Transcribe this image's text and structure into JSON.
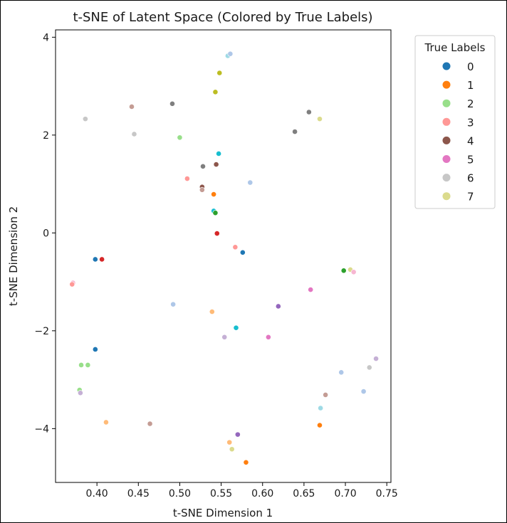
{
  "chart_data": {
    "type": "scatter",
    "title": "t-SNE of Latent Space (Colored by True Labels)",
    "xlabel": "t-SNE Dimension 1",
    "ylabel": "t-SNE Dimension 2",
    "xlim": [
      0.35,
      0.755
    ],
    "ylim": [
      -5.1,
      4.15
    ],
    "xticks": [
      0.4,
      0.45,
      0.5,
      0.55,
      0.6,
      0.65,
      0.7,
      0.75
    ],
    "xtick_labels": [
      "0.40",
      "0.45",
      "0.50",
      "0.55",
      "0.60",
      "0.65",
      "0.70",
      "0.75"
    ],
    "yticks": [
      4,
      2,
      0,
      -2,
      -4
    ],
    "ytick_labels": [
      "4",
      "2",
      "0",
      "−2",
      "−4"
    ],
    "grid": false,
    "legend": {
      "title": "True Labels",
      "placement": "outside-upper-right",
      "entries": [
        {
          "label": "0",
          "color": "#1f77b4"
        },
        {
          "label": "1",
          "color": "#ff7f0e"
        },
        {
          "label": "2",
          "color": "#98df8a"
        },
        {
          "label": "3",
          "color": "#ff9896"
        },
        {
          "label": "4",
          "color": "#8c564b"
        },
        {
          "label": "5",
          "color": "#e377c2"
        },
        {
          "label": "6",
          "color": "#c7c7c7"
        },
        {
          "label": "7",
          "color": "#dbdb8d"
        }
      ]
    },
    "points": [
      {
        "x": 0.558,
        "y": 3.62,
        "color": "#9edae5"
      },
      {
        "x": 0.561,
        "y": 3.66,
        "color": "#aec7e8"
      },
      {
        "x": 0.548,
        "y": 3.27,
        "color": "#bcbd22"
      },
      {
        "x": 0.543,
        "y": 2.88,
        "color": "#bcbd22"
      },
      {
        "x": 0.442,
        "y": 2.58,
        "color": "#c49c94"
      },
      {
        "x": 0.491,
        "y": 2.64,
        "color": "#7f7f7f"
      },
      {
        "x": 0.386,
        "y": 2.33,
        "color": "#c7c7c7"
      },
      {
        "x": 0.445,
        "y": 2.02,
        "color": "#c7c7c7"
      },
      {
        "x": 0.5,
        "y": 1.95,
        "color": "#98df8a"
      },
      {
        "x": 0.656,
        "y": 2.47,
        "color": "#7f7f7f"
      },
      {
        "x": 0.669,
        "y": 2.33,
        "color": "#dbdb8d"
      },
      {
        "x": 0.639,
        "y": 2.07,
        "color": "#7f7f7f"
      },
      {
        "x": 0.547,
        "y": 1.62,
        "color": "#17becf"
      },
      {
        "x": 0.509,
        "y": 1.11,
        "color": "#ff9896"
      },
      {
        "x": 0.528,
        "y": 1.36,
        "color": "#7f7f7f"
      },
      {
        "x": 0.544,
        "y": 1.4,
        "color": "#8c564b"
      },
      {
        "x": 0.585,
        "y": 1.03,
        "color": "#aec7e8"
      },
      {
        "x": 0.527,
        "y": 0.94,
        "color": "#8c564b"
      },
      {
        "x": 0.527,
        "y": 0.88,
        "color": "#c49c94"
      },
      {
        "x": 0.541,
        "y": 0.79,
        "color": "#ff7f0e"
      },
      {
        "x": 0.541,
        "y": 0.45,
        "color": "#17becf"
      },
      {
        "x": 0.543,
        "y": 0.41,
        "color": "#2ca02c"
      },
      {
        "x": 0.545,
        "y": -0.01,
        "color": "#d62728"
      },
      {
        "x": 0.567,
        "y": -0.29,
        "color": "#ff9896"
      },
      {
        "x": 0.576,
        "y": -0.4,
        "color": "#1f77b4"
      },
      {
        "x": 0.398,
        "y": -0.54,
        "color": "#1f77b4"
      },
      {
        "x": 0.406,
        "y": -0.54,
        "color": "#d62728"
      },
      {
        "x": 0.371,
        "y": -1.02,
        "color": "#f7b6d2"
      },
      {
        "x": 0.37,
        "y": -1.05,
        "color": "#ff9896"
      },
      {
        "x": 0.698,
        "y": -0.77,
        "color": "#2ca02c"
      },
      {
        "x": 0.706,
        "y": -0.75,
        "color": "#dbdb8d"
      },
      {
        "x": 0.71,
        "y": -0.8,
        "color": "#f7b6d2"
      },
      {
        "x": 0.658,
        "y": -1.16,
        "color": "#e377c2"
      },
      {
        "x": 0.619,
        "y": -1.5,
        "color": "#9467bd"
      },
      {
        "x": 0.492,
        "y": -1.46,
        "color": "#aec7e8"
      },
      {
        "x": 0.539,
        "y": -1.61,
        "color": "#ffbb78"
      },
      {
        "x": 0.568,
        "y": -1.94,
        "color": "#17becf"
      },
      {
        "x": 0.554,
        "y": -2.13,
        "color": "#c5b0d5"
      },
      {
        "x": 0.607,
        "y": -2.13,
        "color": "#e377c2"
      },
      {
        "x": 0.398,
        "y": -2.38,
        "color": "#1f77b4"
      },
      {
        "x": 0.381,
        "y": -2.7,
        "color": "#98df8a"
      },
      {
        "x": 0.389,
        "y": -2.7,
        "color": "#98df8a"
      },
      {
        "x": 0.379,
        "y": -3.21,
        "color": "#98df8a"
      },
      {
        "x": 0.38,
        "y": -3.27,
        "color": "#c5b0d5"
      },
      {
        "x": 0.695,
        "y": -2.85,
        "color": "#aec7e8"
      },
      {
        "x": 0.729,
        "y": -2.75,
        "color": "#c7c7c7"
      },
      {
        "x": 0.737,
        "y": -2.57,
        "color": "#c5b0d5"
      },
      {
        "x": 0.722,
        "y": -3.24,
        "color": "#aec7e8"
      },
      {
        "x": 0.676,
        "y": -3.31,
        "color": "#c49c94"
      },
      {
        "x": 0.67,
        "y": -3.58,
        "color": "#9edae5"
      },
      {
        "x": 0.411,
        "y": -3.87,
        "color": "#ffbb78"
      },
      {
        "x": 0.464,
        "y": -3.9,
        "color": "#c49c94"
      },
      {
        "x": 0.669,
        "y": -3.93,
        "color": "#ff7f0e"
      },
      {
        "x": 0.57,
        "y": -4.12,
        "color": "#9467bd"
      },
      {
        "x": 0.56,
        "y": -4.28,
        "color": "#ffbb78"
      },
      {
        "x": 0.563,
        "y": -4.42,
        "color": "#dbdb8d"
      },
      {
        "x": 0.58,
        "y": -4.69,
        "color": "#ff7f0e"
      }
    ]
  }
}
